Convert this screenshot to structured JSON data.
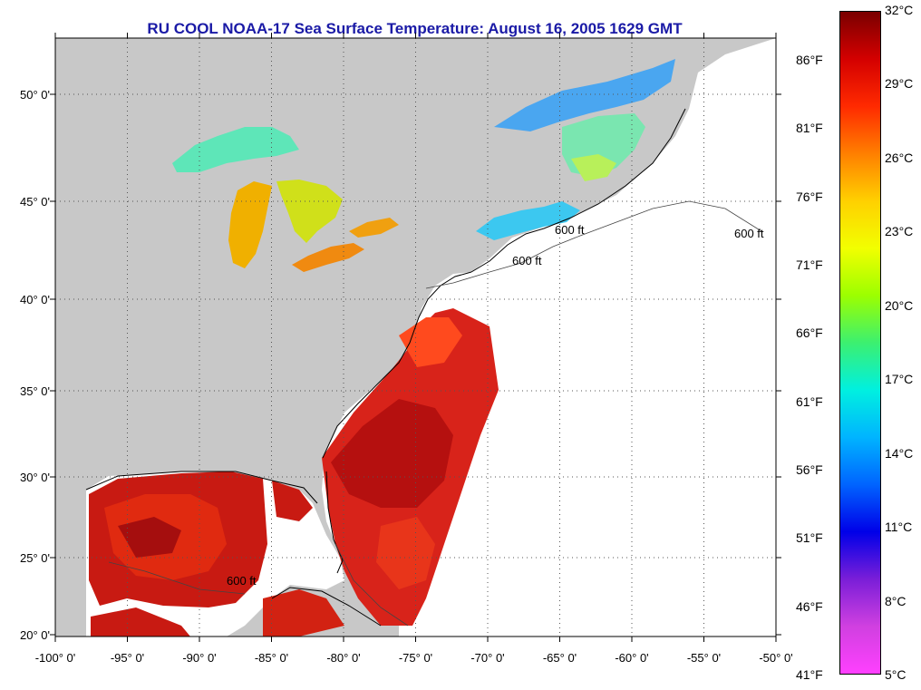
{
  "title": "RU COOL  NOAA-17  Sea Surface Temperature:  August 16, 2005 1629 GMT",
  "colors": {
    "land": "#c8c8c8",
    "no_data": "#ffffff",
    "title": "#1a1aa6"
  },
  "map": {
    "lon_range": [
      -100,
      -50
    ],
    "lat_range": [
      20,
      52.5
    ],
    "lon_ticks": [
      "-100° 0'",
      "-95° 0'",
      "-90° 0'",
      "-85° 0'",
      "-80° 0'",
      "-75° 0'",
      "-70° 0'",
      "-65° 0'",
      "-60° 0'",
      "-55° 0'",
      "-50° 0'"
    ],
    "lat_ticks": [
      "50° 0'",
      "45° 0'",
      "40° 0'",
      "35° 0'",
      "30° 0'",
      "25° 0'",
      "20° 0'"
    ],
    "isobath_labels": [
      "600 ft",
      "600 ft",
      "600 ft",
      "600 ft"
    ]
  },
  "colorbar": {
    "celsius_labels": [
      "32°C",
      "29°C",
      "26°C",
      "23°C",
      "20°C",
      "17°C",
      "14°C",
      "11°C",
      "8°C",
      "5°C"
    ],
    "fahrenheit_labels": [
      "86°F",
      "81°F",
      "76°F",
      "71°F",
      "66°F",
      "61°F",
      "56°F",
      "51°F",
      "46°F",
      "41°F"
    ],
    "gradient_stops": [
      "#7a0000",
      "#d40000",
      "#ff2a00",
      "#ff7f00",
      "#ffd000",
      "#f2ff00",
      "#9cff00",
      "#3cf070",
      "#00f0e0",
      "#00b4ff",
      "#0064ff",
      "#0000e8",
      "#7a1ed8",
      "#d040e0",
      "#ff40ff"
    ]
  }
}
